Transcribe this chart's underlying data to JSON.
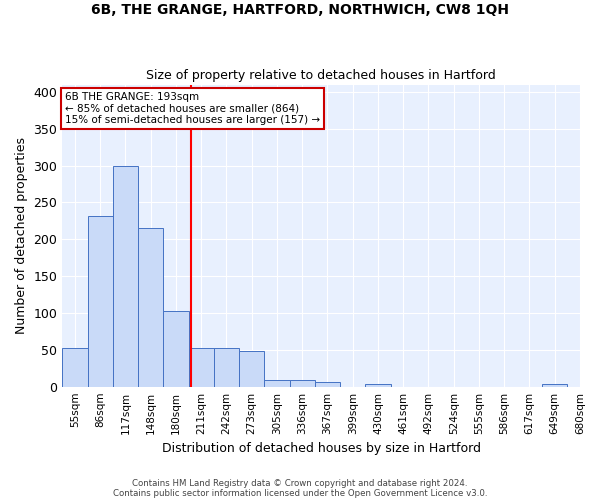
{
  "title1": "6B, THE GRANGE, HARTFORD, NORTHWICH, CW8 1QH",
  "title2": "Size of property relative to detached houses in Hartford",
  "xlabel": "Distribution of detached houses by size in Hartford",
  "ylabel": "Number of detached properties",
  "bin_labels": [
    "55sqm",
    "86sqm",
    "117sqm",
    "148sqm",
    "180sqm",
    "211sqm",
    "242sqm",
    "273sqm",
    "305sqm",
    "336sqm",
    "367sqm",
    "399sqm",
    "430sqm",
    "461sqm",
    "492sqm",
    "524sqm",
    "555sqm",
    "586sqm",
    "617sqm",
    "649sqm",
    "680sqm"
  ],
  "bar_values": [
    52,
    232,
    299,
    215,
    103,
    53,
    53,
    49,
    9,
    9,
    6,
    0,
    4,
    0,
    0,
    0,
    0,
    0,
    0,
    3
  ],
  "bar_color": "#c9daf8",
  "bar_edge_color": "#4472c4",
  "red_line_x": 4.6,
  "ylim": [
    0,
    410
  ],
  "yticks": [
    0,
    50,
    100,
    150,
    200,
    250,
    300,
    350,
    400
  ],
  "annotation_text": "6B THE GRANGE: 193sqm\n← 85% of detached houses are smaller (864)\n15% of semi-detached houses are larger (157) →",
  "annotation_box_color": "#ffffff",
  "annotation_box_edge_color": "#cc0000",
  "footer1": "Contains HM Land Registry data © Crown copyright and database right 2024.",
  "footer2": "Contains public sector information licensed under the Open Government Licence v3.0.",
  "plot_bg_color": "#e8f0fe"
}
